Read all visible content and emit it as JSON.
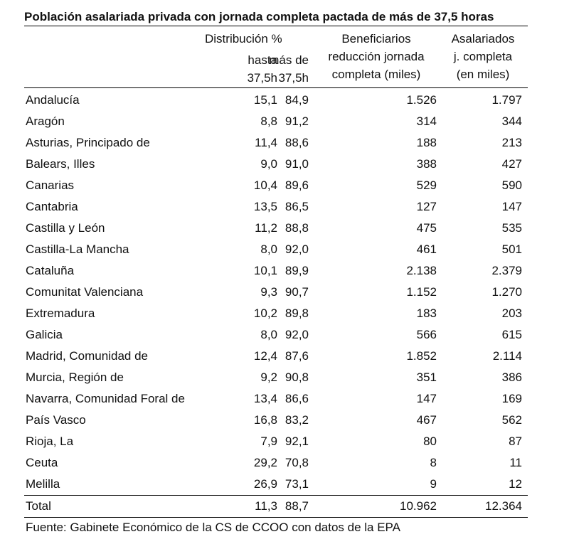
{
  "title": "Población asalariada privada con jornada completa pactada de más de 37,5 horas",
  "headers": {
    "distribucion": "Distribución %",
    "hasta_1": "hasta",
    "hasta_2": "37,5h",
    "mas_1": "más de",
    "mas_2": "37,5h",
    "ben_1": "Beneficiarios",
    "ben_2": "reducción jornada",
    "ben_3": "completa (miles)",
    "asal_1": "Asalariados",
    "asal_2": "j. completa",
    "asal_3": "(en miles)"
  },
  "rows": [
    {
      "region": "Andalucía",
      "hasta": "15,1",
      "mas": "84,9",
      "beneficiarios": "1.526",
      "asalariados": "1.797"
    },
    {
      "region": "Aragón",
      "hasta": "8,8",
      "mas": "91,2",
      "beneficiarios": "314",
      "asalariados": "344"
    },
    {
      "region": "Asturias, Principado de",
      "hasta": "11,4",
      "mas": "88,6",
      "beneficiarios": "188",
      "asalariados": "213"
    },
    {
      "region": "Balears, Illes",
      "hasta": "9,0",
      "mas": "91,0",
      "beneficiarios": "388",
      "asalariados": "427"
    },
    {
      "region": "Canarias",
      "hasta": "10,4",
      "mas": "89,6",
      "beneficiarios": "529",
      "asalariados": "590"
    },
    {
      "region": "Cantabria",
      "hasta": "13,5",
      "mas": "86,5",
      "beneficiarios": "127",
      "asalariados": "147"
    },
    {
      "region": "Castilla y León",
      "hasta": "11,2",
      "mas": "88,8",
      "beneficiarios": "475",
      "asalariados": "535"
    },
    {
      "region": "Castilla-La Mancha",
      "hasta": "8,0",
      "mas": "92,0",
      "beneficiarios": "461",
      "asalariados": "501"
    },
    {
      "region": "Cataluña",
      "hasta": "10,1",
      "mas": "89,9",
      "beneficiarios": "2.138",
      "asalariados": "2.379"
    },
    {
      "region": "Comunitat Valenciana",
      "hasta": "9,3",
      "mas": "90,7",
      "beneficiarios": "1.152",
      "asalariados": "1.270"
    },
    {
      "region": "Extremadura",
      "hasta": "10,2",
      "mas": "89,8",
      "beneficiarios": "183",
      "asalariados": "203"
    },
    {
      "region": "Galicia",
      "hasta": "8,0",
      "mas": "92,0",
      "beneficiarios": "566",
      "asalariados": "615"
    },
    {
      "region": "Madrid, Comunidad de",
      "hasta": "12,4",
      "mas": "87,6",
      "beneficiarios": "1.852",
      "asalariados": "2.114"
    },
    {
      "region": "Murcia, Región de",
      "hasta": "9,2",
      "mas": "90,8",
      "beneficiarios": "351",
      "asalariados": "386"
    },
    {
      "region": "Navarra, Comunidad Foral de",
      "hasta": "13,4",
      "mas": "86,6",
      "beneficiarios": "147",
      "asalariados": "169"
    },
    {
      "region": "País Vasco",
      "hasta": "16,8",
      "mas": "83,2",
      "beneficiarios": "467",
      "asalariados": "562"
    },
    {
      "region": "Rioja, La",
      "hasta": "7,9",
      "mas": "92,1",
      "beneficiarios": "80",
      "asalariados": "87"
    },
    {
      "region": "Ceuta",
      "hasta": "29,2",
      "mas": "70,8",
      "beneficiarios": "8",
      "asalariados": "11"
    },
    {
      "region": "Melilla",
      "hasta": "26,9",
      "mas": "73,1",
      "beneficiarios": "9",
      "asalariados": "12"
    }
  ],
  "total": {
    "region": "Total",
    "hasta": "11,3",
    "mas": "88,7",
    "beneficiarios": "10.962",
    "asalariados": "12.364"
  },
  "source": "Fuente: Gabinete Económico de la CS de CCOO con datos de la EPA"
}
